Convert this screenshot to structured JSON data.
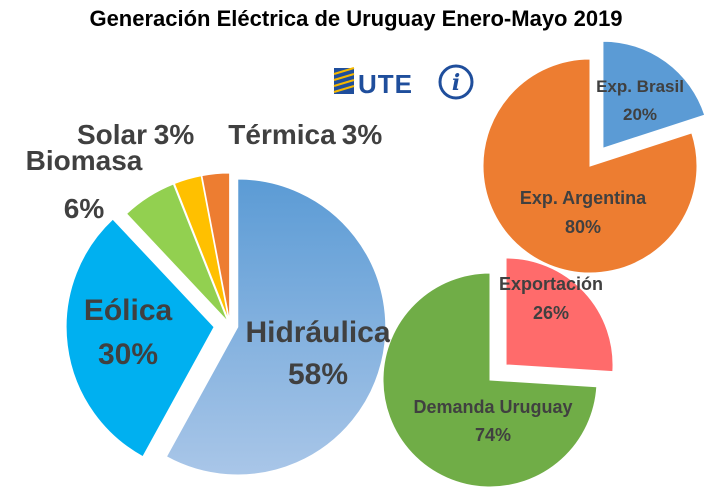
{
  "title": "Generación Eléctrica de Uruguay Enero-Mayo 2019",
  "logos": {
    "brand_text": "UTE",
    "info_glyph": "i"
  },
  "colors": {
    "hidraulica": "#5b9bd5",
    "hidraulica_light": "#a9c6e8",
    "eolica": "#00b0f0",
    "biomasa": "#92d050",
    "solar": "#ffc000",
    "termica": "#ed7d31",
    "exp_brasil": "#5b9bd5",
    "exp_argentina": "#ed7d31",
    "exportacion": "#ff6b6b",
    "demanda": "#70ad47"
  },
  "chart_data": [
    {
      "type": "pie",
      "name": "generacion",
      "slices": [
        {
          "label": "Hidráulica",
          "pct_text": "58%",
          "value": 58
        },
        {
          "label": "Eólica",
          "pct_text": "30%",
          "value": 30
        },
        {
          "label": "Biomasa",
          "pct_text": "6%",
          "value": 6
        },
        {
          "label": "Solar",
          "pct_text": "3%",
          "value": 3
        },
        {
          "label": "Térmica",
          "pct_text": "3%",
          "value": 3
        }
      ]
    },
    {
      "type": "pie",
      "name": "destino-exportacion",
      "slices": [
        {
          "label": "Exp. Brasil",
          "pct_text": "20%",
          "value": 20
        },
        {
          "label": "Exp. Argentina",
          "pct_text": "80%",
          "value": 80
        }
      ]
    },
    {
      "type": "pie",
      "name": "uso-generacion",
      "slices": [
        {
          "label": "Exportación",
          "pct_text": "26%",
          "value": 26
        },
        {
          "label": "Demanda Uruguay",
          "pct_text": "74%",
          "value": 74
        }
      ]
    }
  ]
}
